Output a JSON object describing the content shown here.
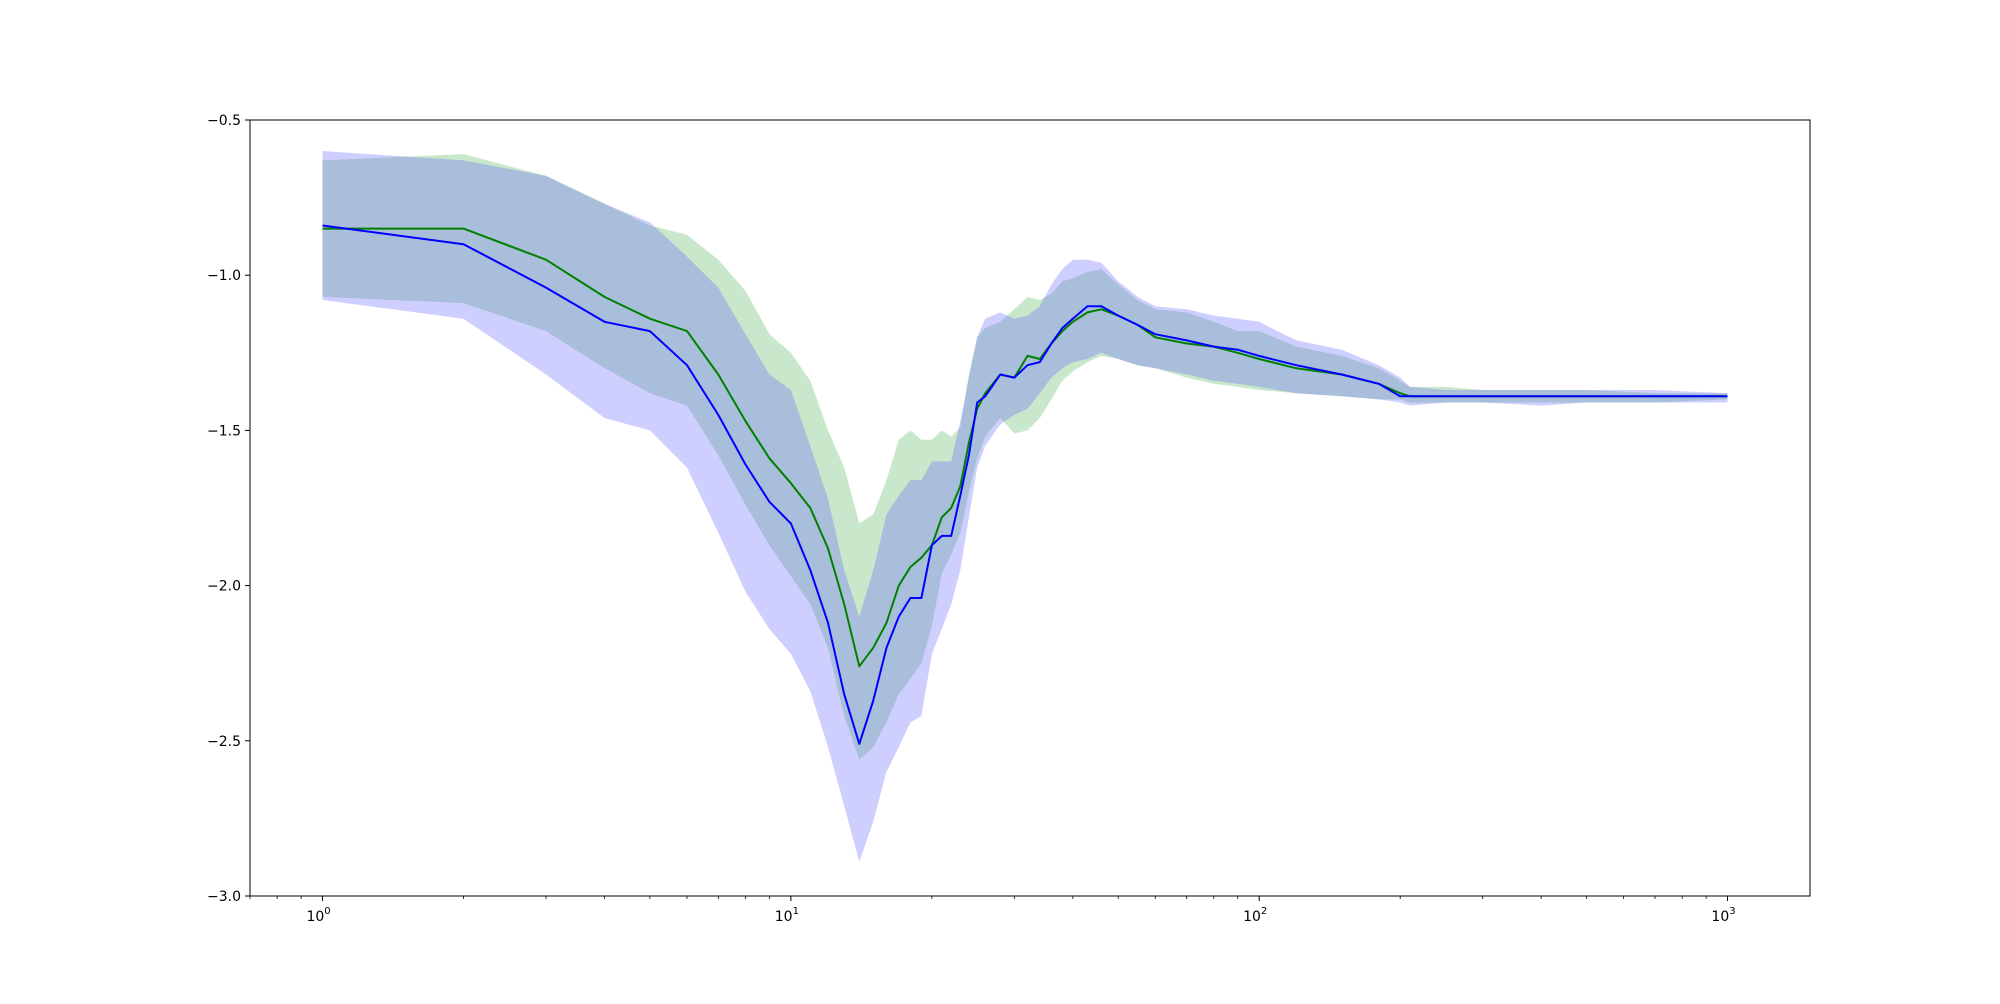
{
  "chart_data": {
    "type": "line",
    "title": "",
    "xlabel": "",
    "ylabel": "",
    "xscale": "log",
    "xlim": [
      0.7,
      1500
    ],
    "ylim": [
      -3.0,
      -0.5
    ],
    "grid": false,
    "legend": "none",
    "x_ticks": [
      {
        "base": "10",
        "exp": "0",
        "value": 1
      },
      {
        "base": "10",
        "exp": "1",
        "value": 10
      },
      {
        "base": "10",
        "exp": "2",
        "value": 100
      },
      {
        "base": "10",
        "exp": "3",
        "value": 1000
      }
    ],
    "y_ticks": [
      {
        "label": "−0.5",
        "value": -0.5
      },
      {
        "label": "−1.0",
        "value": -1.0
      },
      {
        "label": "−1.5",
        "value": -1.5
      },
      {
        "label": "−2.0",
        "value": -2.0
      },
      {
        "label": "−2.5",
        "value": -2.5
      },
      {
        "label": "−3.0",
        "value": -3.0
      }
    ],
    "series": [
      {
        "color": "#008000",
        "band_color": "#4caf50",
        "x": [
          1,
          2,
          3,
          4,
          5,
          6,
          7,
          8,
          9,
          10,
          11,
          12,
          13,
          14,
          15,
          16,
          17,
          18,
          19,
          20,
          21,
          22,
          23,
          24,
          25,
          26,
          28,
          30,
          32,
          34,
          36,
          38,
          40,
          43,
          46,
          50,
          55,
          60,
          70,
          80,
          90,
          100,
          120,
          150,
          180,
          200,
          210,
          250,
          300,
          400,
          500,
          700,
          1000
        ],
        "y": [
          -0.85,
          -0.85,
          -0.95,
          -1.07,
          -1.14,
          -1.18,
          -1.32,
          -1.47,
          -1.59,
          -1.67,
          -1.75,
          -1.88,
          -2.06,
          -2.26,
          -2.2,
          -2.12,
          -2.0,
          -1.94,
          -1.91,
          -1.87,
          -1.78,
          -1.75,
          -1.68,
          -1.54,
          -1.43,
          -1.38,
          -1.32,
          -1.33,
          -1.26,
          -1.27,
          -1.22,
          -1.18,
          -1.15,
          -1.12,
          -1.11,
          -1.13,
          -1.16,
          -1.2,
          -1.22,
          -1.23,
          -1.25,
          -1.27,
          -1.3,
          -1.32,
          -1.35,
          -1.38,
          -1.39,
          -1.39,
          -1.39,
          -1.39,
          -1.39,
          -1.39,
          -1.39
        ],
        "lower": [
          -1.07,
          -1.09,
          -1.18,
          -1.3,
          -1.38,
          -1.42,
          -1.58,
          -1.74,
          -1.87,
          -1.97,
          -2.06,
          -2.2,
          -2.42,
          -2.56,
          -2.52,
          -2.44,
          -2.35,
          -2.3,
          -2.25,
          -2.13,
          -1.96,
          -1.9,
          -1.83,
          -1.7,
          -1.59,
          -1.52,
          -1.46,
          -1.51,
          -1.5,
          -1.46,
          -1.4,
          -1.34,
          -1.31,
          -1.28,
          -1.26,
          -1.27,
          -1.29,
          -1.3,
          -1.33,
          -1.35,
          -1.36,
          -1.37,
          -1.38,
          -1.39,
          -1.4,
          -1.4,
          -1.41,
          -1.41,
          -1.41,
          -1.41,
          -1.41,
          -1.41,
          -1.4
        ],
        "upper": [
          -0.63,
          -0.61,
          -0.68,
          -0.77,
          -0.84,
          -0.87,
          -0.95,
          -1.05,
          -1.19,
          -1.25,
          -1.34,
          -1.5,
          -1.62,
          -1.8,
          -1.77,
          -1.66,
          -1.53,
          -1.5,
          -1.53,
          -1.53,
          -1.5,
          -1.52,
          -1.49,
          -1.32,
          -1.2,
          -1.17,
          -1.15,
          -1.11,
          -1.07,
          -1.08,
          -1.06,
          -1.02,
          -1.01,
          -0.99,
          -0.98,
          -1.03,
          -1.08,
          -1.11,
          -1.12,
          -1.15,
          -1.18,
          -1.18,
          -1.23,
          -1.26,
          -1.3,
          -1.34,
          -1.36,
          -1.36,
          -1.37,
          -1.37,
          -1.37,
          -1.38,
          -1.38
        ]
      },
      {
        "color": "#0000ff",
        "band_color": "#6060ff",
        "x": [
          1,
          2,
          3,
          4,
          5,
          6,
          7,
          8,
          9,
          10,
          11,
          12,
          13,
          14,
          15,
          16,
          17,
          18,
          19,
          20,
          21,
          22,
          23,
          24,
          25,
          26,
          28,
          30,
          32,
          34,
          36,
          38,
          40,
          43,
          46,
          50,
          55,
          60,
          70,
          80,
          90,
          100,
          120,
          150,
          180,
          200,
          210,
          250,
          300,
          400,
          500,
          700,
          1000
        ],
        "y": [
          -0.84,
          -0.9,
          -1.04,
          -1.15,
          -1.18,
          -1.29,
          -1.45,
          -1.61,
          -1.73,
          -1.8,
          -1.95,
          -2.12,
          -2.35,
          -2.51,
          -2.37,
          -2.2,
          -2.1,
          -2.04,
          -2.04,
          -1.87,
          -1.84,
          -1.84,
          -1.71,
          -1.58,
          -1.41,
          -1.39,
          -1.32,
          -1.33,
          -1.29,
          -1.28,
          -1.22,
          -1.17,
          -1.14,
          -1.1,
          -1.1,
          -1.13,
          -1.16,
          -1.19,
          -1.21,
          -1.23,
          -1.24,
          -1.26,
          -1.29,
          -1.32,
          -1.35,
          -1.39,
          -1.39,
          -1.39,
          -1.39,
          -1.39,
          -1.39,
          -1.39,
          -1.39
        ],
        "lower": [
          -1.08,
          -1.14,
          -1.32,
          -1.46,
          -1.5,
          -1.62,
          -1.83,
          -2.02,
          -2.14,
          -2.22,
          -2.34,
          -2.52,
          -2.71,
          -2.89,
          -2.76,
          -2.6,
          -2.52,
          -2.44,
          -2.42,
          -2.22,
          -2.14,
          -2.06,
          -1.95,
          -1.78,
          -1.62,
          -1.55,
          -1.48,
          -1.45,
          -1.43,
          -1.38,
          -1.33,
          -1.3,
          -1.28,
          -1.27,
          -1.25,
          -1.27,
          -1.29,
          -1.3,
          -1.32,
          -1.34,
          -1.35,
          -1.36,
          -1.38,
          -1.39,
          -1.4,
          -1.41,
          -1.42,
          -1.41,
          -1.41,
          -1.42,
          -1.41,
          -1.41,
          -1.41
        ],
        "upper": [
          -0.6,
          -0.63,
          -0.68,
          -0.77,
          -0.83,
          -0.94,
          -1.04,
          -1.19,
          -1.32,
          -1.37,
          -1.55,
          -1.72,
          -1.95,
          -2.1,
          -1.95,
          -1.77,
          -1.71,
          -1.66,
          -1.66,
          -1.6,
          -1.6,
          -1.6,
          -1.47,
          -1.33,
          -1.2,
          -1.14,
          -1.12,
          -1.14,
          -1.13,
          -1.1,
          -1.03,
          -0.98,
          -0.95,
          -0.95,
          -0.96,
          -1.02,
          -1.07,
          -1.1,
          -1.11,
          -1.13,
          -1.14,
          -1.15,
          -1.21,
          -1.24,
          -1.29,
          -1.33,
          -1.36,
          -1.37,
          -1.37,
          -1.37,
          -1.37,
          -1.37,
          -1.38
        ]
      }
    ]
  }
}
